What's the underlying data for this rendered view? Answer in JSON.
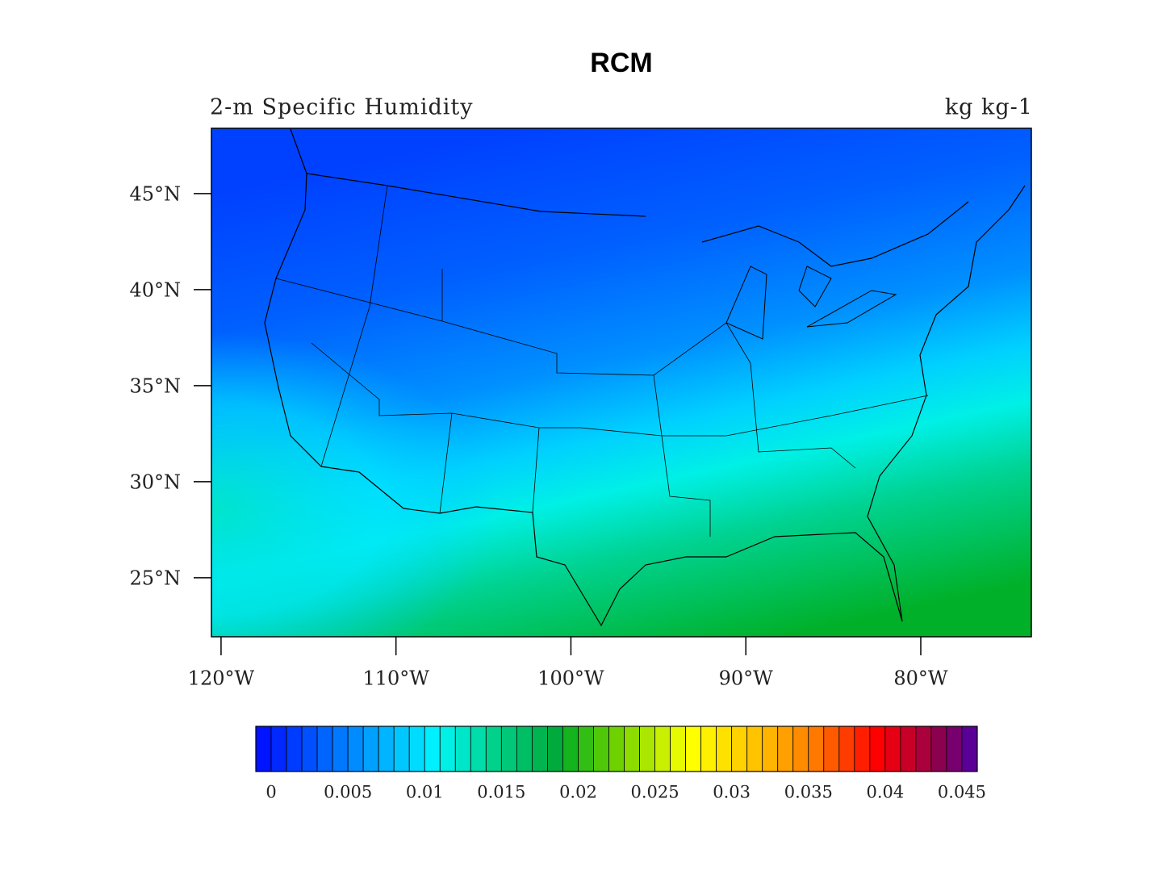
{
  "chart_data": {
    "type": "filled-contour-map",
    "title": "RCM",
    "left_string": "2-m Specific Humidity",
    "right_string": "kg kg-1",
    "ylim": [
      21.93,
      48.4
    ],
    "yticks": [
      {
        "value": 25,
        "label": "25°N"
      },
      {
        "value": 30,
        "label": "30°N"
      },
      {
        "value": 35,
        "label": "35°N"
      },
      {
        "value": 40,
        "label": "40°N"
      },
      {
        "value": 45,
        "label": "45°N"
      }
    ],
    "xlim": [
      -120.55,
      -73.68
    ],
    "xticks": [
      {
        "value": -120,
        "label": "120°W"
      },
      {
        "value": -110,
        "label": "110°W"
      },
      {
        "value": -100,
        "label": "100°W"
      },
      {
        "value": -90,
        "label": "90°W"
      },
      {
        "value": -80,
        "label": "80°W"
      }
    ],
    "colorbar": {
      "lim": [
        -0.001,
        0.046
      ],
      "ticks": [
        0,
        0.005,
        0.01,
        0.015,
        0.02,
        0.025,
        0.03,
        0.035,
        0.04,
        0.045
      ],
      "colors": [
        "#0014ff",
        "#0028ff",
        "#003cff",
        "#0050ff",
        "#0064ff",
        "#0078ff",
        "#008cff",
        "#00a0ff",
        "#00b4ff",
        "#00c8ff",
        "#00dcff",
        "#00f0ff",
        "#00f0e6",
        "#00e6c8",
        "#00dcaa",
        "#00d28c",
        "#00c878",
        "#00be64",
        "#00b450",
        "#00aa3c",
        "#14b41e",
        "#32be14",
        "#50c80a",
        "#6ed200",
        "#8cdc00",
        "#aae600",
        "#c8f000",
        "#e6fa00",
        "#ffff00",
        "#fff000",
        "#ffe100",
        "#ffd200",
        "#ffc300",
        "#ffb400",
        "#ffa000",
        "#ff8c00",
        "#ff7800",
        "#ff5a00",
        "#ff3c00",
        "#ff1e00",
        "#ff0000",
        "#e60014",
        "#c80028",
        "#aa003c",
        "#8c0050",
        "#78006e",
        "#5a0096"
      ]
    }
  }
}
